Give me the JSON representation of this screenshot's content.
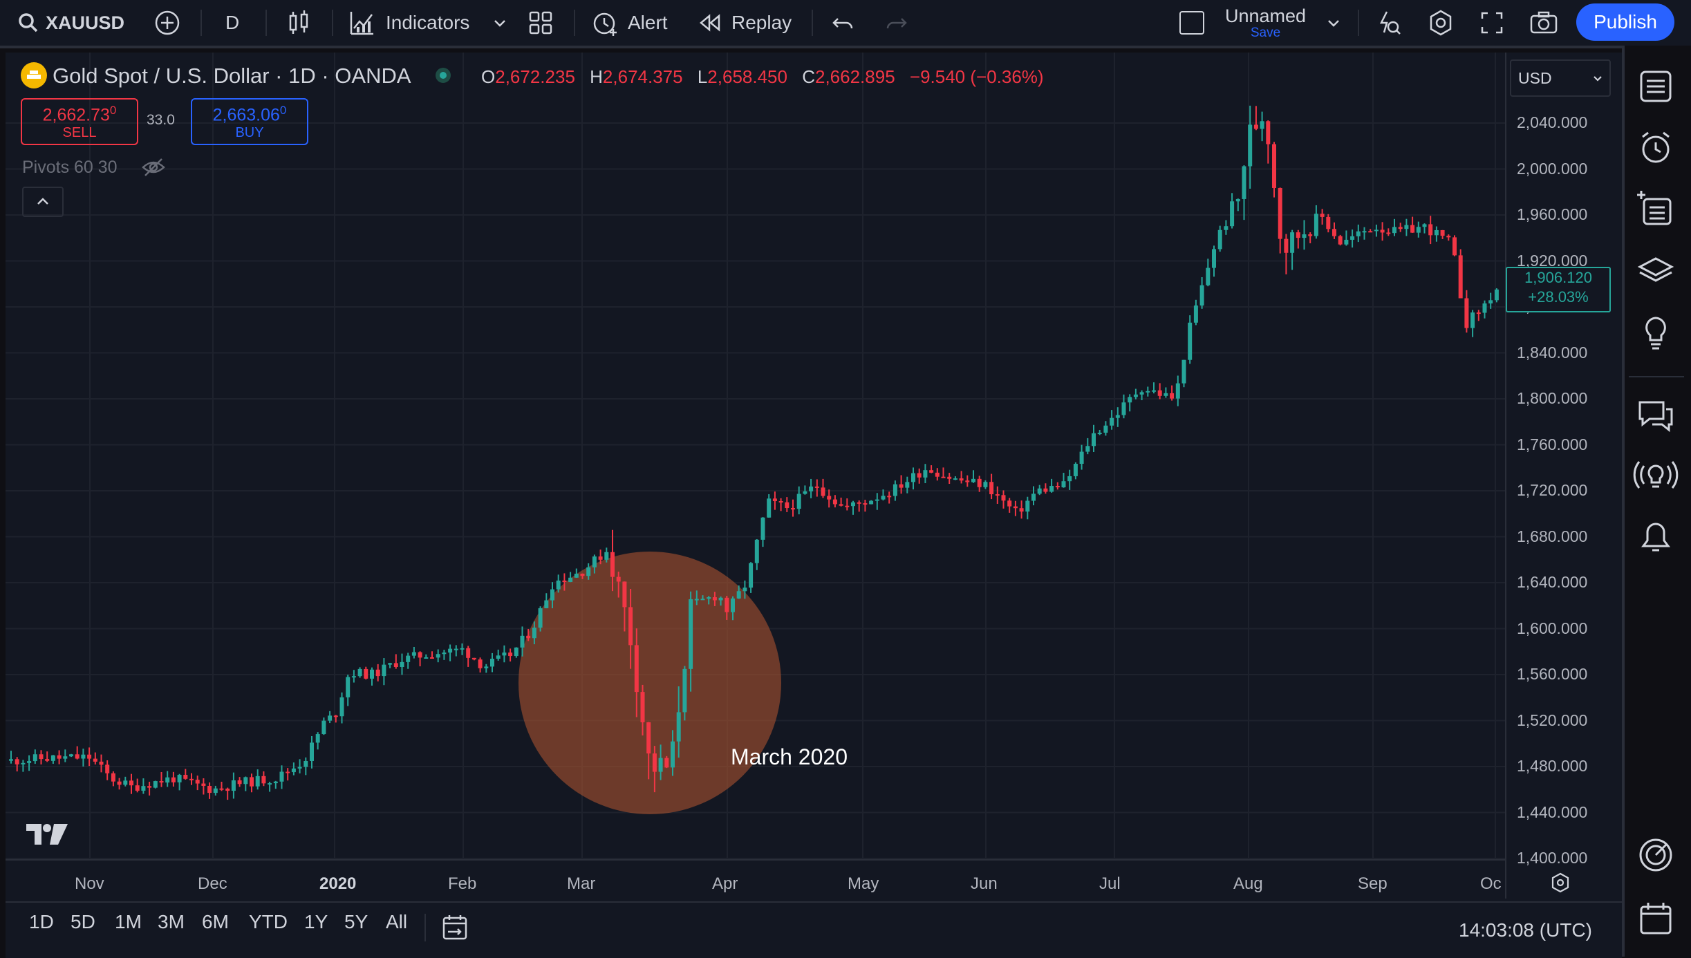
{
  "colors": {
    "up": "#26a69a",
    "down": "#f23645",
    "accent": "#2962ff",
    "annotation_circle": "#a5512f",
    "background": "#131722"
  },
  "toolbar": {
    "symbol": "XAUUSD",
    "interval": "D",
    "indicators": "Indicators",
    "alert": "Alert",
    "replay": "Replay",
    "layout_name": "Unnamed",
    "layout_save": "Save",
    "publish": "Publish"
  },
  "legend": {
    "title": "Gold Spot / U.S. Dollar · 1D · OANDA",
    "o_label": "O",
    "o_value": "2,672.235",
    "h_label": "H",
    "h_value": "2,674.375",
    "l_label": "L",
    "l_value": "2,658.450",
    "c_label": "C",
    "c_value": "2,662.895",
    "change": "−9.540 (−0.36%)"
  },
  "trade": {
    "sell_price": "2,662.73",
    "sell_price_sup": "0",
    "sell_label": "SELL",
    "spread": "33.0",
    "buy_price": "2,663.06",
    "buy_price_sup": "0",
    "buy_label": "BUY"
  },
  "indicator": {
    "label": "Pivots 60 30"
  },
  "currency_select": "USD",
  "current_price": {
    "value": "1,906.120",
    "change": "+28.03%"
  },
  "annotation": {
    "text": "March 2020"
  },
  "timeframes": [
    "1D",
    "5D",
    "1M",
    "3M",
    "6M",
    "YTD",
    "1Y",
    "5Y",
    "All"
  ],
  "clock": "14:03:08 (UTC)",
  "chart_data": {
    "type": "candlestick",
    "y_ticks": [
      "2,040.000",
      "2,000.000",
      "1,960.000",
      "1,920.000",
      "1,880.000",
      "1,840.000",
      "1,800.000",
      "1,760.000",
      "1,720.000",
      "1,680.000",
      "1,640.000",
      "1,600.000",
      "1,560.000",
      "1,520.000",
      "1,480.000",
      "1,440.000",
      "1,400.000"
    ],
    "x_ticks": [
      "Nov",
      "Dec",
      "2020",
      "Feb",
      "Mar",
      "Apr",
      "May",
      "Jun",
      "Jul",
      "Aug",
      "Sep",
      "Oc"
    ],
    "ylim": [
      1400,
      2075
    ],
    "key_points": [
      {
        "date": "Nov",
        "close": 1480
      },
      {
        "date": "Dec",
        "close": 1465
      },
      {
        "date": "2020",
        "close": 1525
      },
      {
        "date": "Feb",
        "close": 1580
      },
      {
        "date": "Mar",
        "close": 1660
      },
      {
        "date": "Mar-mid",
        "close": 1480
      },
      {
        "date": "Apr",
        "close": 1620
      },
      {
        "date": "May",
        "close": 1700
      },
      {
        "date": "Jun",
        "close": 1720
      },
      {
        "date": "Jul",
        "close": 1790
      },
      {
        "date": "Aug",
        "close": 2060
      },
      {
        "date": "Sep",
        "close": 1960
      },
      {
        "date": "Oc",
        "close": 1906
      }
    ]
  }
}
